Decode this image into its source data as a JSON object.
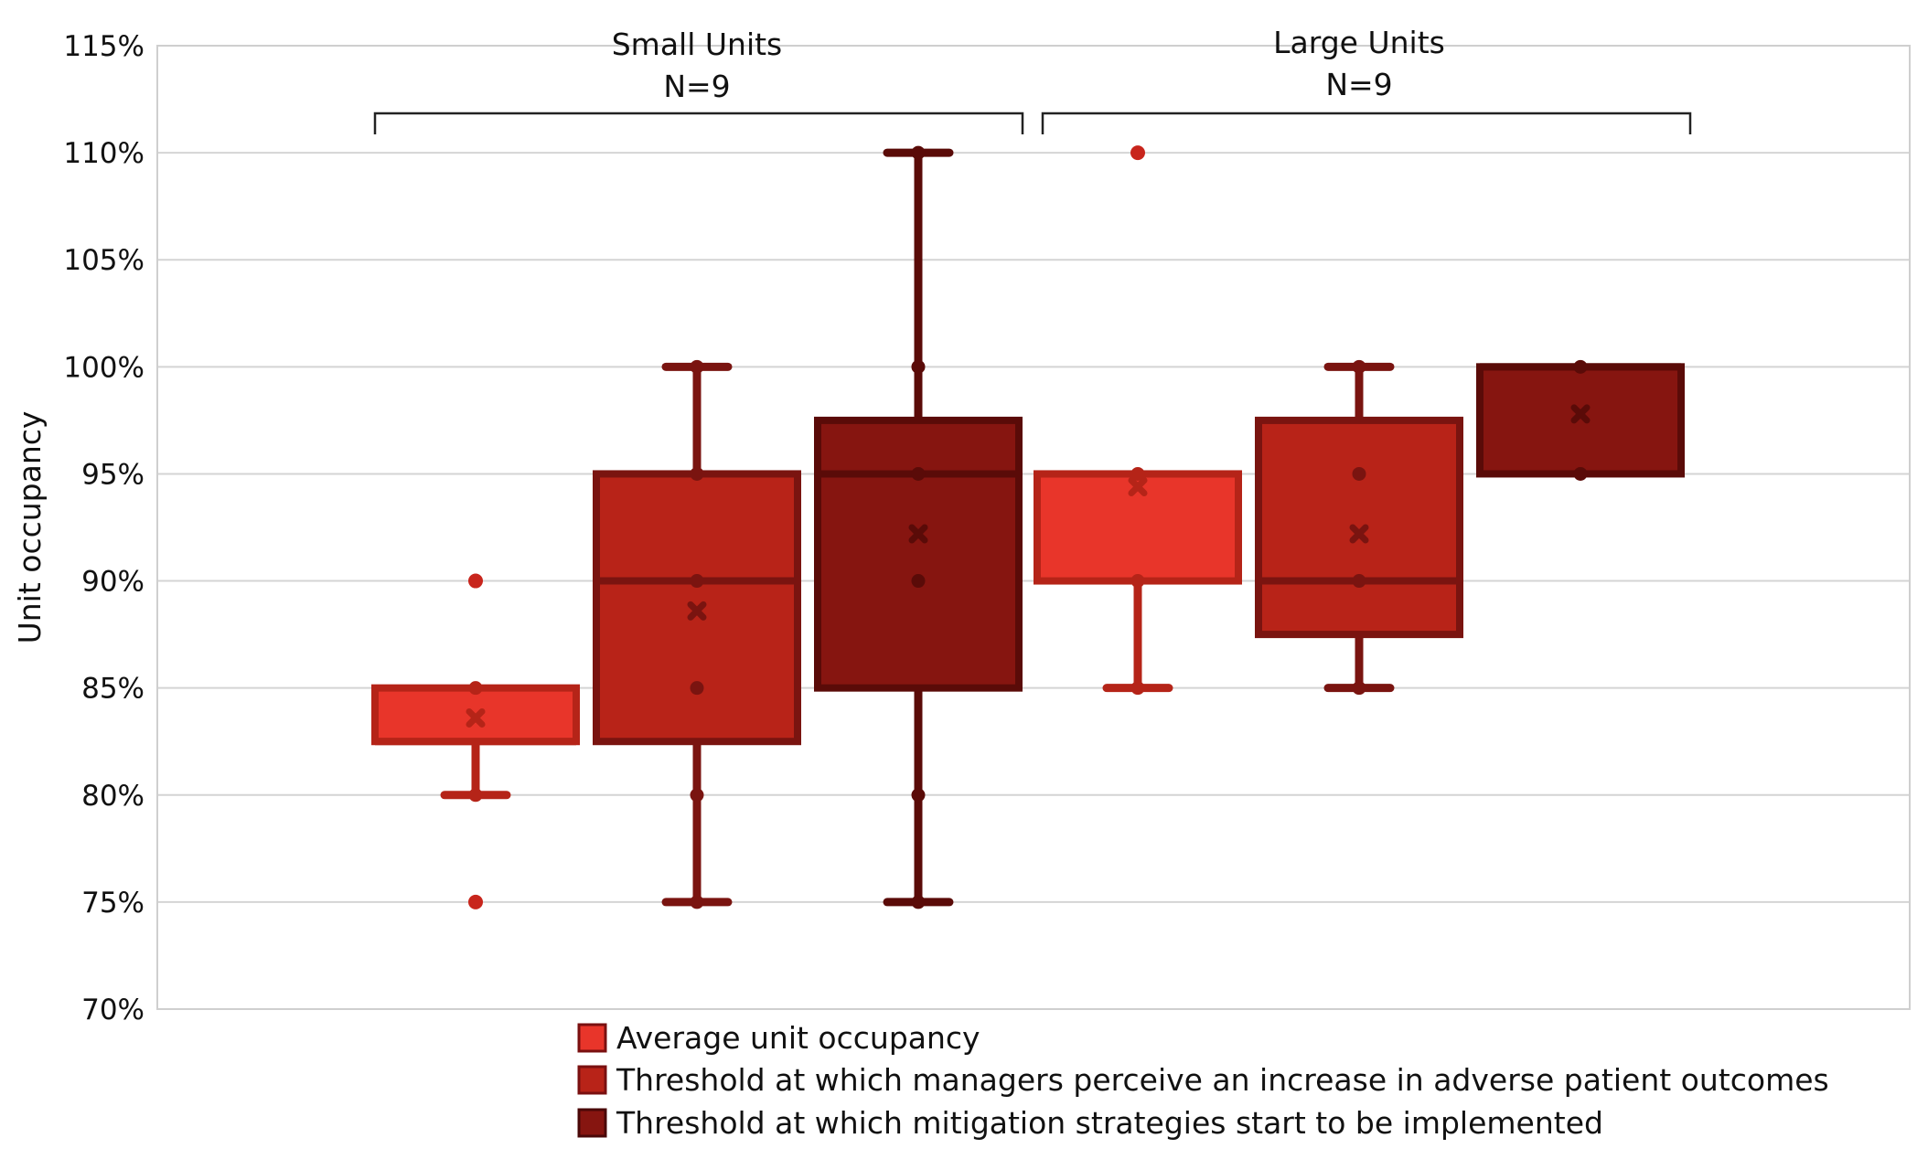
{
  "chart_data": {
    "type": "box",
    "ylabel": "Unit occupancy",
    "ylim": [
      70,
      115
    ],
    "y_ticks": [
      "70%",
      "75%",
      "80%",
      "85%",
      "90%",
      "95%",
      "100%",
      "105%",
      "110%",
      "115%"
    ],
    "y_tick_values": [
      70,
      75,
      80,
      85,
      90,
      95,
      100,
      105,
      110,
      115
    ],
    "grid": true,
    "legend_position": "bottom",
    "groups": [
      {
        "label": "Small Units",
        "sublabel": "N=9"
      },
      {
        "label": "Large Units",
        "sublabel": "N=9"
      }
    ],
    "series": [
      {
        "name": "Average unit occupancy",
        "color": "#e8352a"
      },
      {
        "name": "Threshold at which managers perceive an increase in adverse patient outcomes",
        "color": "#b82318"
      },
      {
        "name": "Threshold at which mitigation strategies start to be implemented",
        "color": "#861510"
      }
    ],
    "boxes": [
      {
        "group": 0,
        "series": 0,
        "whisker_low": 80,
        "q1": 82.5,
        "median": 82.5,
        "q3": 85,
        "whisker_high": 85,
        "mean": 83.6,
        "points": [
          85,
          80
        ],
        "outliers": [
          90,
          75
        ]
      },
      {
        "group": 0,
        "series": 1,
        "whisker_low": 75,
        "q1": 82.5,
        "median": 90,
        "q3": 95,
        "whisker_high": 100,
        "mean": 88.6,
        "points": [
          100,
          95,
          90,
          85,
          80,
          75
        ],
        "outliers": []
      },
      {
        "group": 0,
        "series": 2,
        "whisker_low": 75,
        "q1": 85,
        "median": 95,
        "q3": 97.5,
        "whisker_high": 110,
        "mean": 92.2,
        "points": [
          110,
          100,
          95,
          90,
          80,
          75
        ],
        "outliers": []
      },
      {
        "group": 1,
        "series": 0,
        "whisker_low": 85,
        "q1": 90,
        "median": 95,
        "q3": 95,
        "whisker_high": 95,
        "mean": 94.4,
        "points": [
          95,
          90,
          85
        ],
        "outliers": [
          110
        ]
      },
      {
        "group": 1,
        "series": 1,
        "whisker_low": 85,
        "q1": 87.5,
        "median": 90,
        "q3": 97.5,
        "whisker_high": 100,
        "mean": 92.2,
        "points": [
          100,
          95,
          90,
          85
        ],
        "outliers": []
      },
      {
        "group": 1,
        "series": 2,
        "whisker_low": 95,
        "q1": 95,
        "median": 100,
        "q3": 100,
        "whisker_high": 100,
        "mean": 97.8,
        "points": [
          100,
          95
        ],
        "outliers": []
      }
    ]
  }
}
